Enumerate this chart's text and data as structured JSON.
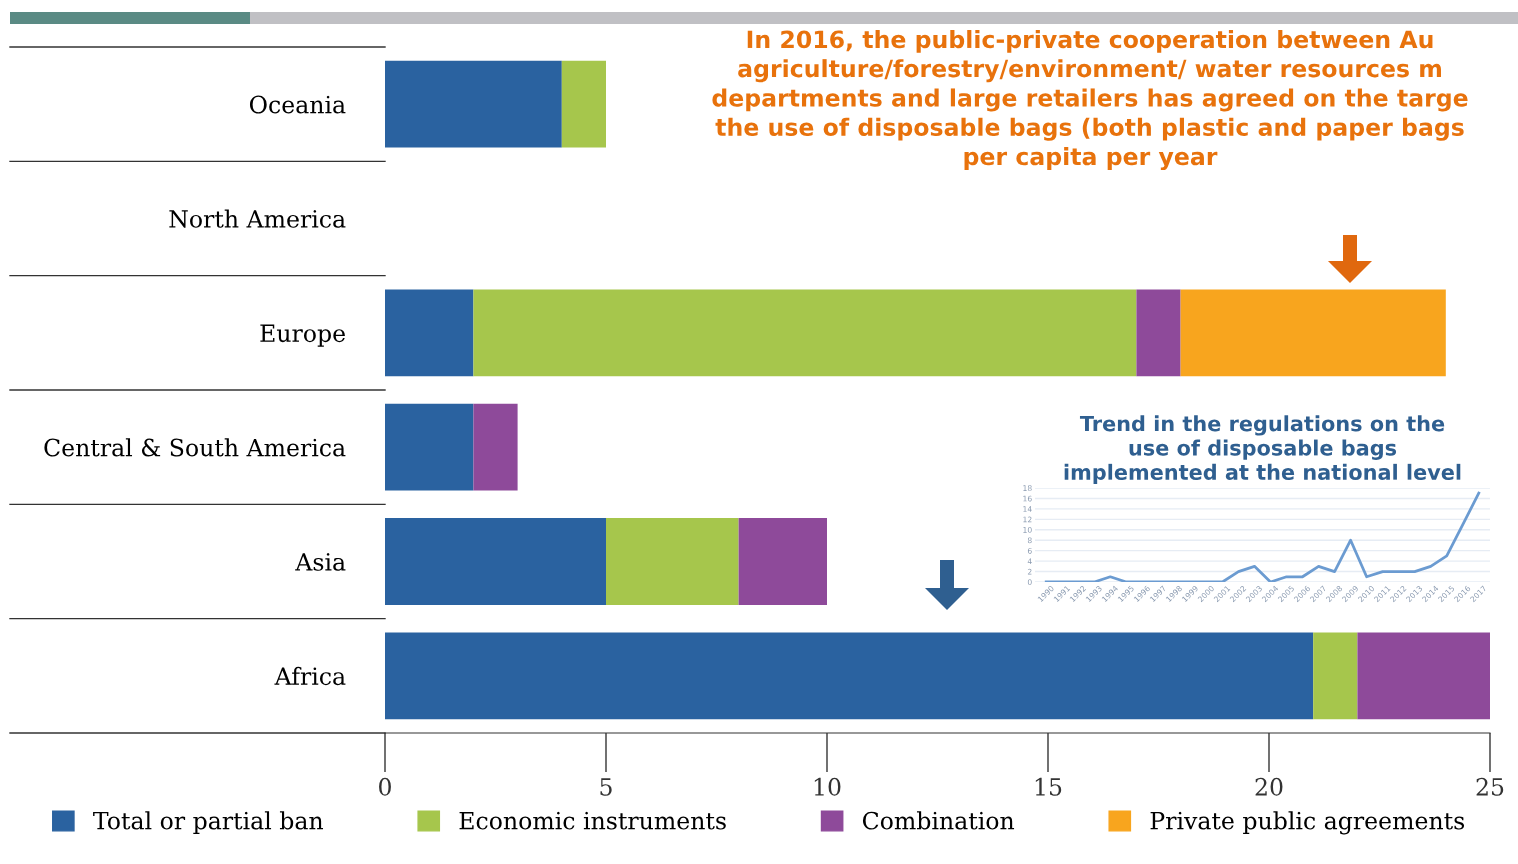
{
  "chart_data": [
    {
      "type": "bar",
      "orientation": "horizontal",
      "stacked": true,
      "categories": [
        "Oceania",
        "North America",
        "Europe",
        "Central & South America",
        "Asia",
        "Africa"
      ],
      "series": [
        {
          "name": "Total or partial ban",
          "color": "#2a62a0",
          "values": [
            4,
            null,
            2,
            2,
            5,
            21
          ]
        },
        {
          "name": "Economic instruments",
          "color": "#a6c64c",
          "values": [
            1,
            null,
            15,
            null,
            3,
            1
          ]
        },
        {
          "name": "Combination",
          "color": "#8e4a9a",
          "values": [
            null,
            null,
            1,
            1,
            2,
            3
          ]
        },
        {
          "name": "Private public agreements",
          "color": "#f8a51e",
          "values": [
            null,
            null,
            6,
            null,
            null,
            null
          ]
        }
      ],
      "xlim": [
        0,
        25
      ],
      "xticks": [
        0,
        5,
        10,
        15,
        20,
        25
      ],
      "legend": "bottom",
      "annotations": [
        "In 2016, the public-private cooperation between Au\nagriculture/forestry/environment/ water resources m\ndepartments and large retailers has agreed on the targe\nthe use of disposable bags (both plastic and paper bags\nper capita per year"
      ]
    },
    {
      "type": "line",
      "title": "Trend in the regulations on the\nuse of disposable bags\nimplemented at the national level",
      "categories": [
        "1990",
        "1991",
        "1992",
        "1993",
        "1994",
        "1995",
        "1996",
        "1997",
        "1998",
        "1999",
        "2000",
        "2001",
        "2002",
        "2003",
        "2004",
        "2005",
        "2006",
        "2007",
        "2008",
        "2009",
        "2010",
        "2011",
        "2012",
        "2013",
        "2014",
        "2015",
        "2016",
        "2017"
      ],
      "series": [
        {
          "color": "#6b9bd1",
          "values": [
            0,
            0,
            0,
            0,
            1,
            0,
            0,
            0,
            0,
            0,
            0,
            0,
            2,
            3,
            0,
            1,
            1,
            3,
            2,
            8,
            1,
            2,
            2,
            2,
            3,
            5,
            11,
            17
          ]
        }
      ],
      "ylim": [
        0,
        18
      ],
      "yticks": [
        0,
        2,
        4,
        6,
        8,
        10,
        12,
        14,
        16,
        18
      ],
      "grid": "y"
    }
  ]
}
